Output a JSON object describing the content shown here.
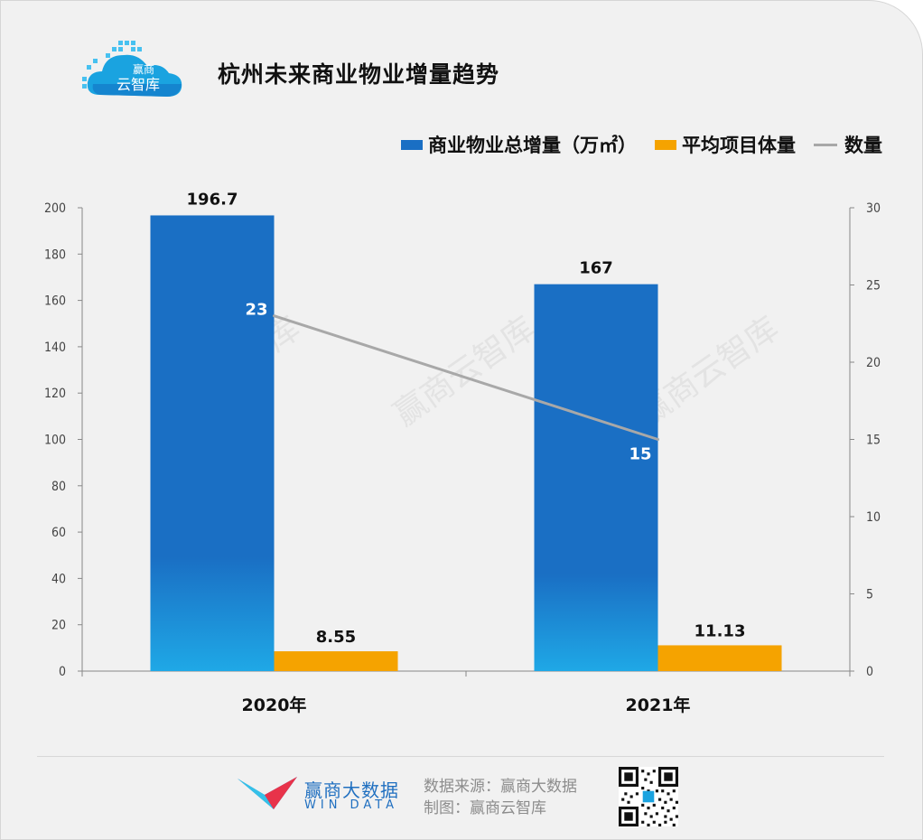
{
  "header": {
    "logo_text_top": "赢商",
    "logo_text_bottom": "云智库",
    "title": "杭州未来商业物业增量趋势"
  },
  "legend": {
    "items": [
      {
        "label": "商业物业总增量（万㎡）",
        "color": "#1a6fc4",
        "type": "bar"
      },
      {
        "label": "平均项目体量",
        "color": "#f5a300",
        "type": "bar"
      },
      {
        "label": "数量",
        "color": "#a8a8a8",
        "type": "line"
      }
    ]
  },
  "chart_data": {
    "type": "bar",
    "categories": [
      "2020年",
      "2021年"
    ],
    "series": [
      {
        "name": "商业物业总增量（万㎡）",
        "values": [
          196.7,
          167
        ],
        "axis": "left",
        "kind": "bar",
        "labels": [
          "196.7",
          "167"
        ]
      },
      {
        "name": "平均项目体量",
        "values": [
          8.55,
          11.13
        ],
        "axis": "left",
        "kind": "bar",
        "labels": [
          "8.55",
          "11.13"
        ]
      },
      {
        "name": "数量",
        "values": [
          23,
          15
        ],
        "axis": "right",
        "kind": "line",
        "labels": [
          "23",
          "15"
        ]
      }
    ],
    "y_left": {
      "ylim": [
        0,
        200
      ],
      "ticks": [
        "0",
        "20",
        "40",
        "60",
        "80",
        "100",
        "120",
        "140",
        "160",
        "180",
        "200"
      ]
    },
    "y_right": {
      "ylim": [
        0,
        30
      ],
      "ticks": [
        "0",
        "5",
        "10",
        "15",
        "20",
        "25",
        "30"
      ]
    },
    "colors": {
      "total": "#1a6fc4",
      "total_bottom": "#1fa8e6",
      "avg": "#f5a300",
      "count": "#a8a8a8"
    },
    "watermark": "赢商云智库",
    "grid": false,
    "legend_position": "top-right"
  },
  "footer": {
    "brand_name": "赢商大数据",
    "brand_sub": "WIN DATA",
    "source_line": "数据来源：赢商大数据",
    "producer_line": "制图：赢商云智库"
  }
}
